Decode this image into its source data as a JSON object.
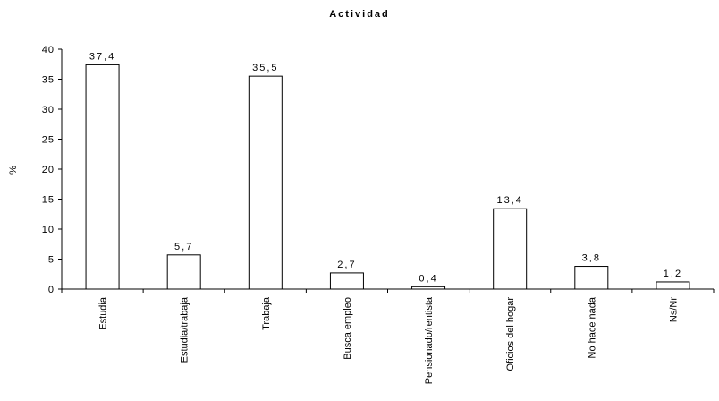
{
  "chart_data": {
    "type": "bar",
    "title": "Actividad",
    "xlabel": "",
    "ylabel": "%",
    "ylim": [
      0,
      40
    ],
    "yticks": [
      "0",
      "5",
      "10",
      "15",
      "20",
      "25",
      "30",
      "35",
      "40"
    ],
    "grid": false,
    "categories": [
      "Estudia",
      "Estudia/trabaja",
      "Trabaja",
      "Busca empleo",
      "Pensionado/rentista",
      "Oficios del hogar",
      "No hace nada",
      "Ns/Nr"
    ],
    "values": [
      37.4,
      5.7,
      35.5,
      2.7,
      0.4,
      13.4,
      3.8,
      1.2
    ],
    "value_labels": [
      "37,4",
      "5,7",
      "35,5",
      "2,7",
      "0,4",
      "13,4",
      "3,8",
      "1,2"
    ],
    "bar_fill": "#ffffff",
    "bar_stroke": "#000000"
  }
}
